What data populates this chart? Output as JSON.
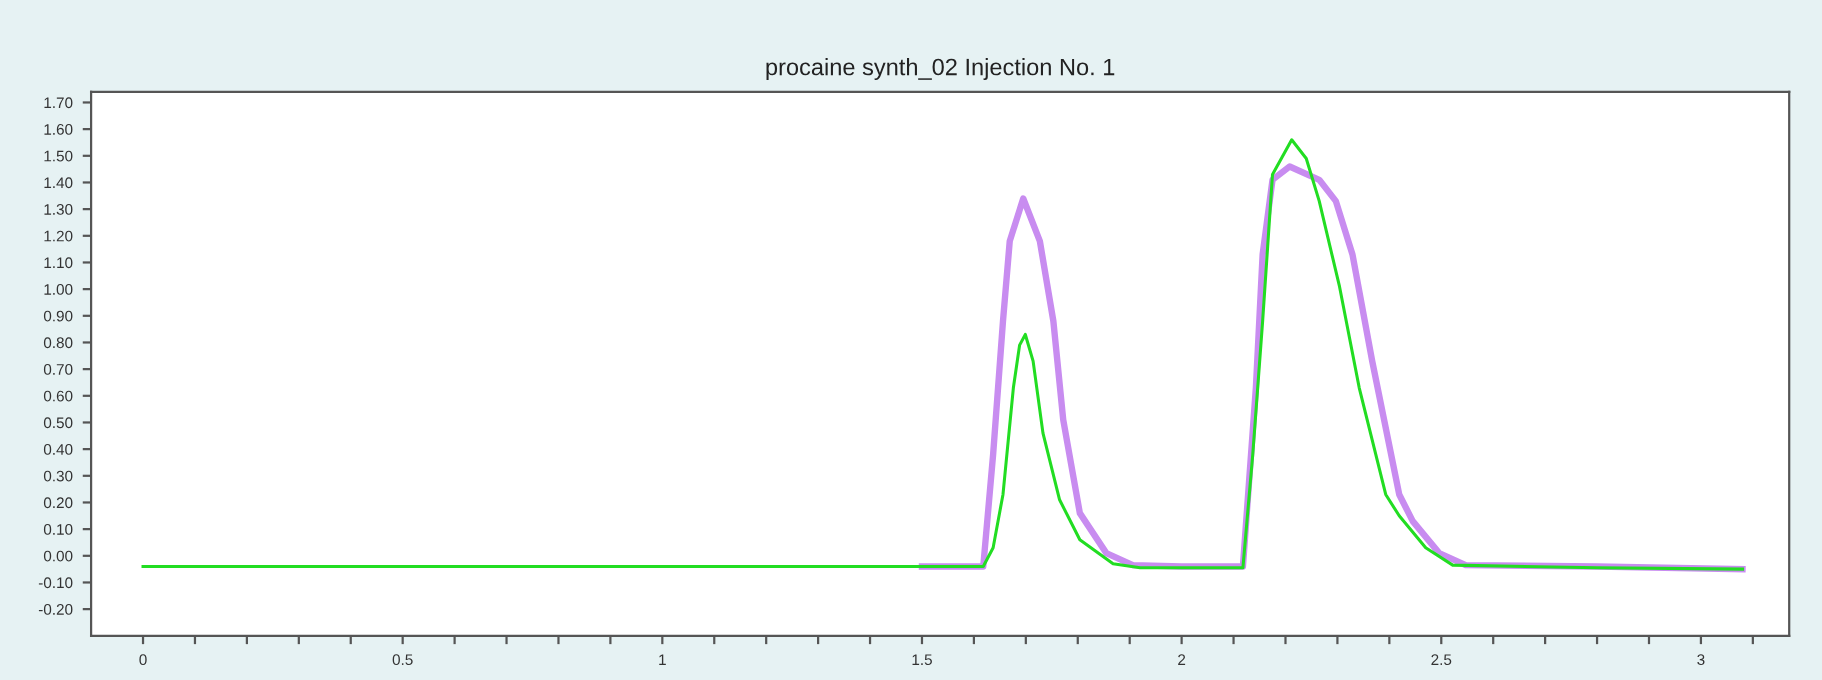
{
  "chart_data": {
    "type": "line",
    "title": "procaine synth_02 Injection No. 1",
    "series": [
      {
        "color": "#c88cf0",
        "x": [
          1.5,
          1.618,
          1.637,
          1.656,
          1.669,
          1.695,
          1.727,
          1.753,
          1.772,
          1.804,
          1.855,
          1.906,
          2.0,
          2.118,
          2.143,
          2.156,
          2.175,
          2.208,
          2.265,
          2.297,
          2.329,
          2.367,
          2.419,
          2.445,
          2.496,
          2.547,
          2.8,
          3.08
        ],
        "values": [
          -0.04,
          -0.04,
          0.38,
          0.88,
          1.18,
          1.34,
          1.18,
          0.88,
          0.51,
          0.16,
          0.01,
          -0.035,
          -0.04,
          -0.04,
          0.63,
          1.13,
          1.41,
          1.46,
          1.41,
          1.33,
          1.13,
          0.73,
          0.23,
          0.13,
          0.01,
          -0.035,
          -0.04,
          -0.05
        ]
      },
      {
        "color": "#22dd22",
        "x": [
          0,
          0.5,
          1.0,
          1.5,
          1.618,
          1.637,
          1.656,
          1.676,
          1.688,
          1.699,
          1.714,
          1.733,
          1.765,
          1.804,
          1.868,
          1.92,
          2.0,
          2.118,
          2.137,
          2.156,
          2.175,
          2.212,
          2.24,
          2.265,
          2.304,
          2.342,
          2.393,
          2.419,
          2.47,
          2.522,
          2.8,
          3.08
        ],
        "values": [
          -0.04,
          -0.04,
          -0.04,
          -0.04,
          -0.04,
          0.03,
          0.23,
          0.63,
          0.79,
          0.83,
          0.73,
          0.46,
          0.21,
          0.06,
          -0.03,
          -0.045,
          -0.045,
          -0.045,
          0.38,
          0.88,
          1.43,
          1.56,
          1.49,
          1.33,
          1.01,
          0.63,
          0.23,
          0.15,
          0.03,
          -0.035,
          -0.045,
          -0.05
        ]
      }
    ],
    "xlim": [
      -0.1,
      3.17
    ],
    "ylim": [
      -0.3,
      1.74
    ],
    "xticks": [
      {
        "value": 0,
        "label": "0"
      },
      {
        "value": 0.1,
        "label": null
      },
      {
        "value": 0.2,
        "label": null
      },
      {
        "value": 0.3,
        "label": null
      },
      {
        "value": 0.4,
        "label": null
      },
      {
        "value": 0.5,
        "label": "0.5"
      },
      {
        "value": 0.6,
        "label": null
      },
      {
        "value": 0.7,
        "label": null
      },
      {
        "value": 0.8,
        "label": null
      },
      {
        "value": 0.9,
        "label": null
      },
      {
        "value": 1,
        "label": "1"
      },
      {
        "value": 1.1,
        "label": null
      },
      {
        "value": 1.2,
        "label": null
      },
      {
        "value": 1.3,
        "label": null
      },
      {
        "value": 1.4,
        "label": null
      },
      {
        "value": 1.5,
        "label": "1.5"
      },
      {
        "value": 1.6,
        "label": null
      },
      {
        "value": 1.7,
        "label": null
      },
      {
        "value": 1.8,
        "label": null
      },
      {
        "value": 1.9,
        "label": null
      },
      {
        "value": 2,
        "label": "2"
      },
      {
        "value": 2.1,
        "label": null
      },
      {
        "value": 2.2,
        "label": null
      },
      {
        "value": 2.3,
        "label": null
      },
      {
        "value": 2.4,
        "label": null
      },
      {
        "value": 2.5,
        "label": "2.5"
      },
      {
        "value": 2.6,
        "label": null
      },
      {
        "value": 2.7,
        "label": null
      },
      {
        "value": 2.8,
        "label": null
      },
      {
        "value": 2.9,
        "label": null
      },
      {
        "value": 3,
        "label": "3"
      },
      {
        "value": 3.1,
        "label": null
      }
    ],
    "yticks": [
      {
        "value": 1.7,
        "label": "1.70"
      },
      {
        "value": 1.6,
        "label": "1.60"
      },
      {
        "value": 1.5,
        "label": "1.50"
      },
      {
        "value": 1.4,
        "label": "1.40"
      },
      {
        "value": 1.3,
        "label": "1.30"
      },
      {
        "value": 1.2,
        "label": "1.20"
      },
      {
        "value": 1.1,
        "label": "1.10"
      },
      {
        "value": 1.0,
        "label": "1.00"
      },
      {
        "value": 0.9,
        "label": "0.90"
      },
      {
        "value": 0.8,
        "label": "0.80"
      },
      {
        "value": 0.7,
        "label": "0.70"
      },
      {
        "value": 0.6,
        "label": "0.60"
      },
      {
        "value": 0.5,
        "label": "0.50"
      },
      {
        "value": 0.4,
        "label": "0.40"
      },
      {
        "value": 0.3,
        "label": "0.30"
      },
      {
        "value": 0.2,
        "label": "0.20"
      },
      {
        "value": 0.1,
        "label": "0.10"
      },
      {
        "value": 0,
        "label": "0.00"
      },
      {
        "value": -0.1,
        "label": "-0.10"
      },
      {
        "value": -0.2,
        "label": "-0.20"
      }
    ],
    "grid": false
  }
}
